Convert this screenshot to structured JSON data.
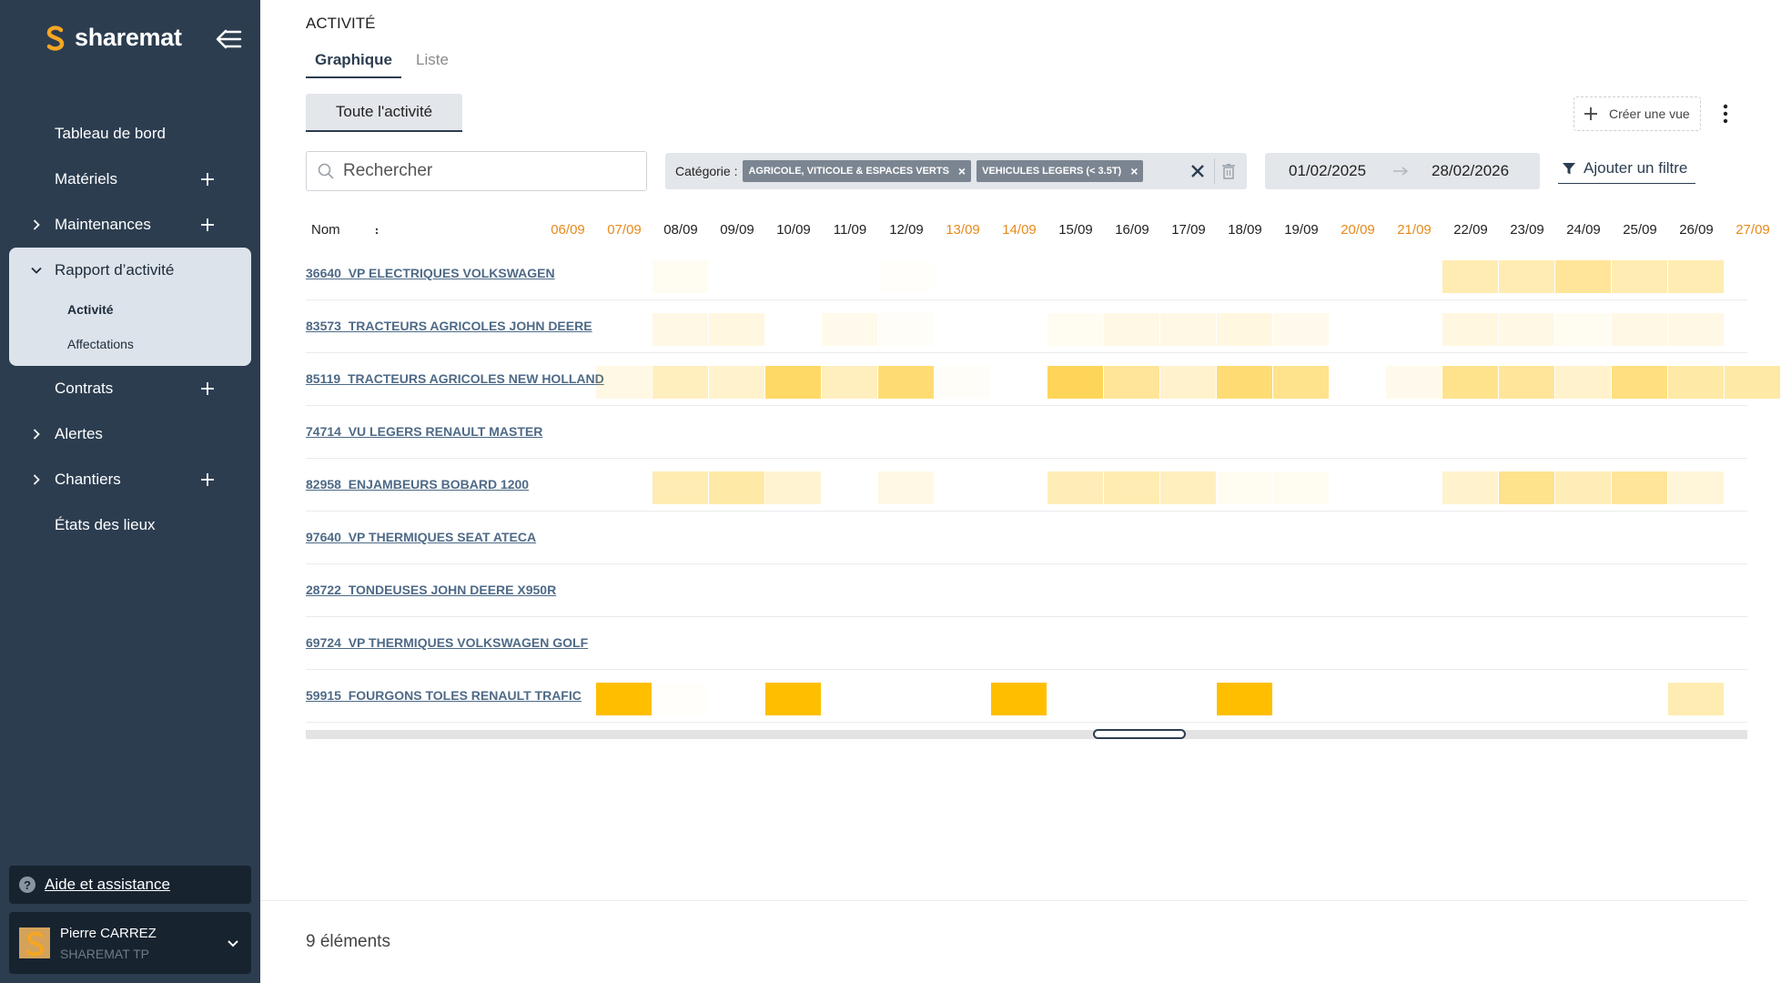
{
  "app": {
    "name": "sharemat",
    "brand_color": "#f5a623",
    "sidebar_color": "#2c3d50"
  },
  "sidebar": {
    "items": [
      {
        "label": "Tableau de bord",
        "has_add": false,
        "has_chevron": false
      },
      {
        "label": "Matériels",
        "has_add": true,
        "has_chevron": false
      },
      {
        "label": "Maintenances",
        "has_add": true,
        "has_chevron": true
      }
    ],
    "active_group": {
      "label": "Rapport d’activité",
      "subitems": [
        {
          "label": "Activité",
          "active": true
        },
        {
          "label": "Affectations",
          "active": false
        }
      ]
    },
    "items_after": [
      {
        "label": "Contrats",
        "has_add": true,
        "has_chevron": false
      },
      {
        "label": "Alertes",
        "has_add": false,
        "has_chevron": true
      },
      {
        "label": "Chantiers",
        "has_add": true,
        "has_chevron": true
      },
      {
        "label": "États des lieux",
        "has_add": false,
        "has_chevron": false
      }
    ],
    "help_label": "Aide et assistance",
    "user": {
      "name": "Pierre CARREZ",
      "company": "SHAREMAT TP"
    }
  },
  "page": {
    "title": "ACTIVITÉ",
    "tabs": [
      {
        "label": "Graphique",
        "active": true
      },
      {
        "label": "Liste",
        "active": false
      }
    ],
    "view_button": "Toute l'activité",
    "create_view": "Créer une vue"
  },
  "filters": {
    "search_placeholder": "Rechercher",
    "category_label": "Catégorie :",
    "chips": [
      "AGRICOLE, VITICOLE & ESPACES VERTS",
      "VEHICULES LEGERS (< 3.5T)"
    ],
    "date_from": "01/02/2025",
    "date_to": "28/02/2026",
    "add_filter": "Ajouter un filtre"
  },
  "grid": {
    "name_header": "Nom",
    "days": [
      {
        "label": "06/09",
        "weekend": true
      },
      {
        "label": "07/09",
        "weekend": true
      },
      {
        "label": "08/09",
        "weekend": false
      },
      {
        "label": "09/09",
        "weekend": false
      },
      {
        "label": "10/09",
        "weekend": false
      },
      {
        "label": "11/09",
        "weekend": false
      },
      {
        "label": "12/09",
        "weekend": false
      },
      {
        "label": "13/09",
        "weekend": true
      },
      {
        "label": "14/09",
        "weekend": true
      },
      {
        "label": "15/09",
        "weekend": false
      },
      {
        "label": "16/09",
        "weekend": false
      },
      {
        "label": "17/09",
        "weekend": false
      },
      {
        "label": "18/09",
        "weekend": false
      },
      {
        "label": "19/09",
        "weekend": false
      },
      {
        "label": "20/09",
        "weekend": true
      },
      {
        "label": "21/09",
        "weekend": true
      },
      {
        "label": "22/09",
        "weekend": false
      },
      {
        "label": "23/09",
        "weekend": false
      },
      {
        "label": "24/09",
        "weekend": false
      },
      {
        "label": "25/09",
        "weekend": false
      },
      {
        "label": "26/09",
        "weekend": false
      },
      {
        "label": "27/09",
        "weekend": true
      }
    ],
    "rows": [
      {
        "name": "36640_VP ELECTRIQUES VOLKSWAGEN",
        "activity": [
          0,
          0,
          0.05,
          0,
          0,
          0,
          0.02,
          0,
          0,
          0,
          0,
          0,
          0,
          0,
          0,
          0,
          0.3,
          0.3,
          0.4,
          0.3,
          0.3,
          0
        ]
      },
      {
        "name": "83573_TRACTEURS AGRICOLES JOHN DEERE",
        "activity": [
          0,
          0,
          0.1,
          0.12,
          0,
          0.08,
          0.03,
          0,
          0,
          0.05,
          0.1,
          0.1,
          0.12,
          0.08,
          0,
          0,
          0.12,
          0.1,
          0.05,
          0.1,
          0.1,
          0
        ]
      },
      {
        "name": "85119_TRACTEURS AGRICOLES NEW HOLLAND",
        "activity": [
          0,
          0.1,
          0.25,
          0.2,
          0.6,
          0.25,
          0.55,
          0.03,
          0,
          0.65,
          0.4,
          0.2,
          0.55,
          0.45,
          0,
          0.08,
          0.45,
          0.4,
          0.2,
          0.5,
          0.35,
          0.35
        ]
      },
      {
        "name": "74714_VU LEGERS RENAULT MASTER",
        "activity": [
          0,
          0,
          0,
          0,
          0,
          0,
          0,
          0,
          0,
          0,
          0,
          0,
          0,
          0,
          0,
          0,
          0,
          0,
          0,
          0,
          0,
          0
        ]
      },
      {
        "name": "82958_ENJAMBEURS BOBARD 1200",
        "activity": [
          0,
          0,
          0.3,
          0.35,
          0.18,
          0,
          0.1,
          0,
          0,
          0.28,
          0.3,
          0.25,
          0.05,
          0.05,
          0,
          0,
          0.2,
          0.45,
          0.28,
          0.4,
          0.15,
          0
        ]
      },
      {
        "name": "97640_VP THERMIQUES SEAT ATECA",
        "activity": [
          0,
          0,
          0,
          0,
          0,
          0,
          0,
          0,
          0,
          0,
          0,
          0,
          0,
          0,
          0,
          0,
          0,
          0,
          0,
          0,
          0,
          0
        ]
      },
      {
        "name": "28722_TONDEUSES JOHN DEERE X950R",
        "activity": [
          0,
          0,
          0,
          0,
          0,
          0,
          0,
          0,
          0,
          0,
          0,
          0,
          0,
          0,
          0,
          0,
          0,
          0,
          0,
          0,
          0,
          0
        ]
      },
      {
        "name": "69724_VP THERMIQUES VOLKSWAGEN GOLF",
        "activity": [
          0,
          0,
          0,
          0,
          0,
          0,
          0,
          0,
          0,
          0,
          0,
          0,
          0,
          0,
          0,
          0,
          0,
          0,
          0,
          0,
          0,
          0
        ]
      },
      {
        "name": "59915_FOURGONS TOLES RENAULT TRAFIC",
        "activity": [
          0,
          1,
          0.02,
          0,
          1,
          0,
          0,
          0,
          1,
          0,
          0,
          0,
          1,
          0,
          0,
          0,
          0,
          0,
          0,
          0,
          0.3,
          0
        ]
      }
    ],
    "heat_color": "#ffbf00"
  },
  "footer": {
    "count": "9 éléments"
  }
}
